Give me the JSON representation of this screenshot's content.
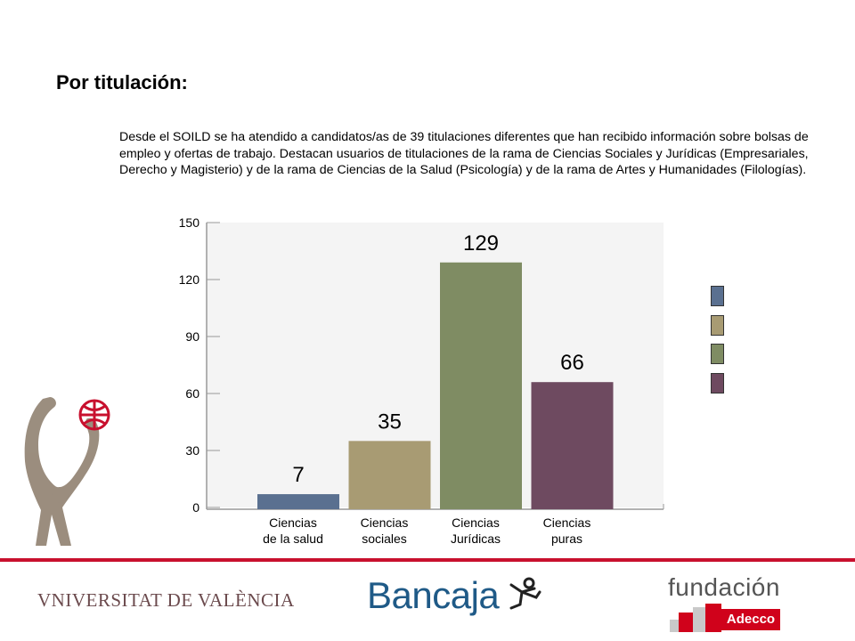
{
  "slide": {
    "title": "Por titulación:",
    "intro": "Desde el SOILD se ha atendido a candidatos/as de 39 titulaciones diferentes que han recibido información sobre bolsas de empleo y ofertas de trabajo. Destacan usuarios de titulaciones de la rama de Ciencias Sociales y Jurídicas (Empresariales, Derecho y Magisterio) y de la rama de Ciencias de la Salud (Psicología) y de la rama de Artes y Humanidades (Filologías)."
  },
  "chart_data": {
    "type": "bar",
    "categories": [
      [
        "Ciencias",
        "de la salud"
      ],
      [
        "Ciencias",
        "sociales"
      ],
      [
        "Ciencias",
        "Jurídicas"
      ],
      [
        "Ciencias",
        "puras"
      ]
    ],
    "values": [
      7,
      35,
      129,
      66
    ],
    "data_labels": [
      "7",
      "35",
      "129",
      "66"
    ],
    "ylim": [
      0,
      150
    ],
    "yticks": [
      0,
      30,
      60,
      90,
      120,
      150
    ],
    "colors": [
      "#5a7090",
      "#a89b73",
      "#7f8c63",
      "#6e4a60"
    ],
    "grid": false,
    "legend": {
      "placement": "right",
      "entries": [
        "",
        "",
        "",
        ""
      ]
    }
  },
  "footer": {
    "university": "VNIVERSITAT  DE VALÈNCIA",
    "bank": "Bancaja",
    "foundation": "fundación",
    "sponsor": "Adecco"
  }
}
